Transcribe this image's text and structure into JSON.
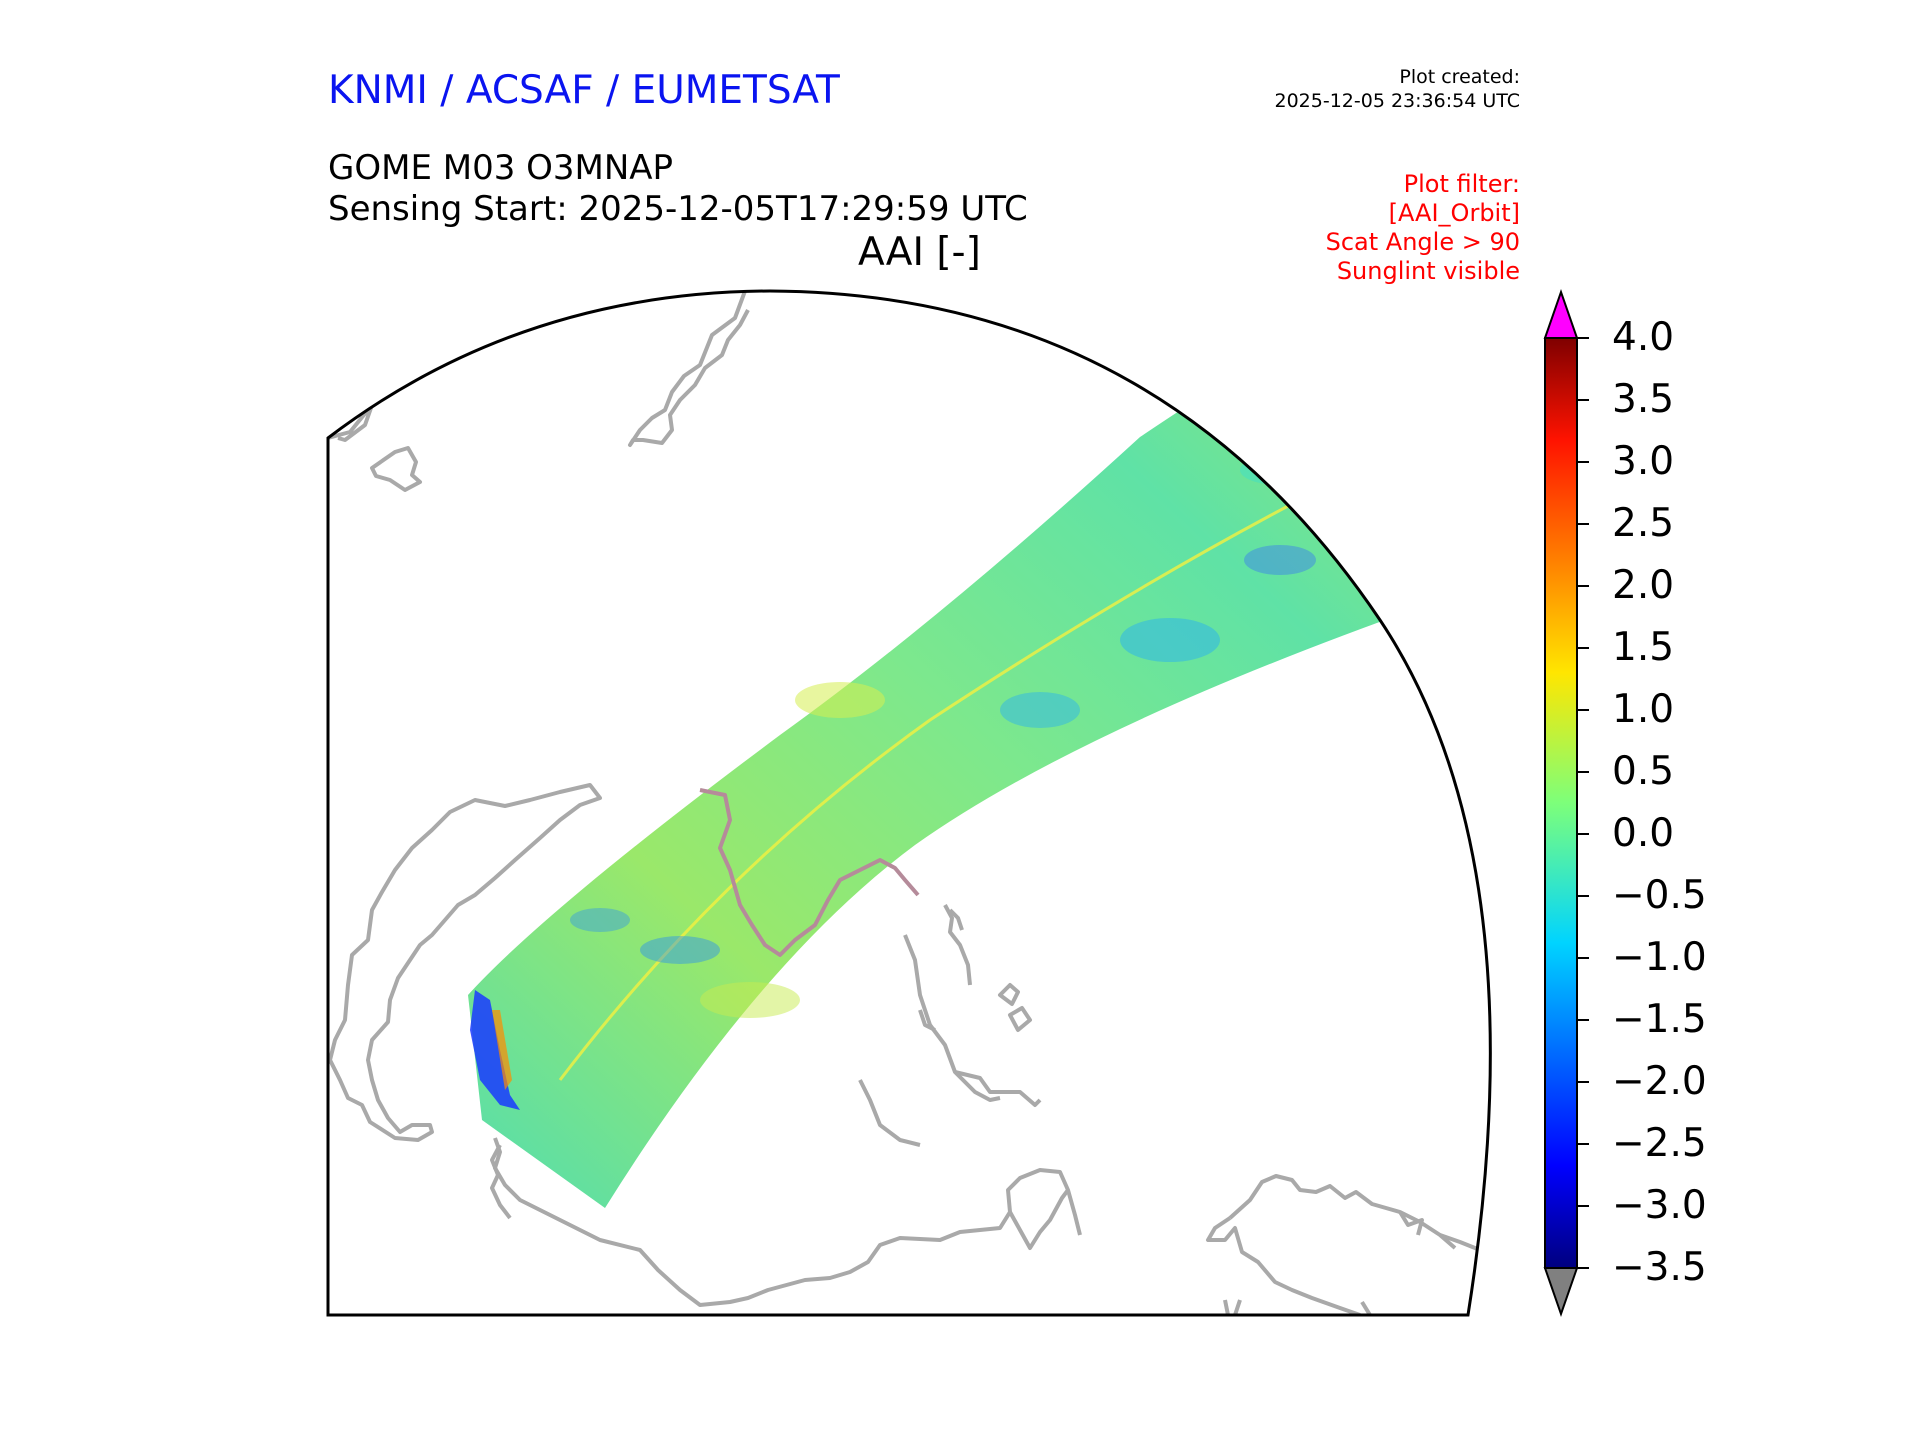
{
  "header": {
    "agency": "KNMI / ACSAF / EUMETSAT",
    "plot_created_label": "Plot created:",
    "plot_created_time": "2025-12-05 23:36:54 UTC",
    "product": "GOME M03 O3MNAP",
    "sensing_start": "Sensing Start: 2025-12-05T17:29:59 UTC",
    "variable": "AAI [-]"
  },
  "filter": {
    "lines": [
      "Plot filter:",
      "[AAI_Orbit]",
      "Scat Angle > 90",
      "Sunglint visible"
    ]
  },
  "colorbar": {
    "min": -3.5,
    "max": 4.0,
    "tick_labels": [
      "4.0",
      "3.5",
      "3.0",
      "2.5",
      "2.0",
      "1.5",
      "1.0",
      "0.5",
      "0.0",
      "−0.5",
      "−1.0",
      "−1.5",
      "−2.0",
      "−2.5",
      "−3.0",
      "−3.5"
    ],
    "over_color": "#ff00ff",
    "under_color": "#808080"
  },
  "colors": {
    "coastline": "#a9a9a9",
    "frame": "#000000",
    "swath_base": "#7ee88c"
  }
}
